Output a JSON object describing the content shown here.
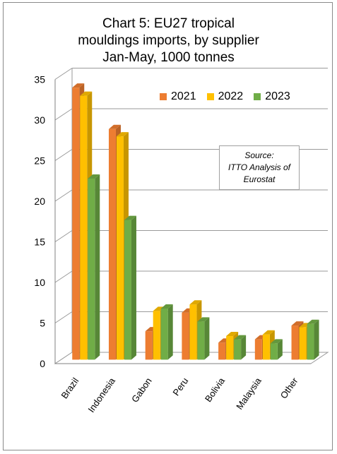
{
  "chart_data": {
    "type": "bar",
    "title_lines": [
      "Chart 5: EU27 tropical",
      "mouldings imports, by supplier",
      "Jan-May, 1000 tonnes"
    ],
    "categories": [
      "Brazil",
      "Indonesia",
      "Gabon",
      "Peru",
      "Bolivia",
      "Malaysia",
      "Other"
    ],
    "series": [
      {
        "name": "2021",
        "color": "#ed7d31",
        "values": [
          33.5,
          28.4,
          3.5,
          5.8,
          2.1,
          2.5,
          4.2
        ]
      },
      {
        "name": "2022",
        "color": "#ffc000",
        "values": [
          32.5,
          27.5,
          6.0,
          6.8,
          2.9,
          3.1,
          4.0
        ]
      },
      {
        "name": "2023",
        "color": "#70ad47",
        "values": [
          22.3,
          17.2,
          6.3,
          4.7,
          2.5,
          2.0,
          4.4
        ]
      }
    ],
    "y_ticks": [
      "0",
      "5",
      "10",
      "15",
      "20",
      "25",
      "30",
      "35"
    ],
    "ylim": [
      0,
      35
    ],
    "grid": true,
    "legend_position": "top-right",
    "annotation_lines": [
      "Source:",
      "ITTO Analysis of",
      "Eurostat"
    ]
  }
}
